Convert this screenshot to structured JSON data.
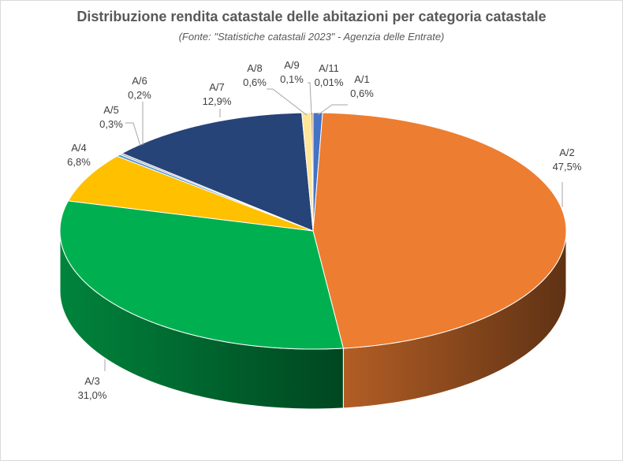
{
  "chart_data": {
    "type": "pie",
    "style": "3d",
    "title": "Distribuzione  rendita catastale delle abitazioni  per categoria catastale",
    "subtitle": "(Fonte: \"Statistiche catastali 2023\" - Agenzia delle Entrate)",
    "legend": "none",
    "slices": [
      {
        "label": "A/1",
        "value": 0.6,
        "value_label": "0,6%",
        "color": "#4472c4"
      },
      {
        "label": "A/2",
        "value": 47.5,
        "value_label": "47,5%",
        "color": "#ed7d31"
      },
      {
        "label": "A/3",
        "value": 31.0,
        "value_label": "31,0%",
        "color": "#00b050"
      },
      {
        "label": "A/4",
        "value": 6.8,
        "value_label": "6,8%",
        "color": "#ffc000"
      },
      {
        "label": "A/5",
        "value": 0.3,
        "value_label": "0,3%",
        "color": "#5b9bd5"
      },
      {
        "label": "A/6",
        "value": 0.2,
        "value_label": "0,2%",
        "color": "#a5a5a5"
      },
      {
        "label": "A/7",
        "value": 12.9,
        "value_label": "12,9%",
        "color": "#264478"
      },
      {
        "label": "A/8",
        "value": 0.6,
        "value_label": "0,6%",
        "color": "#ffe699"
      },
      {
        "label": "A/9",
        "value": 0.1,
        "value_label": "0,1%",
        "color": "#9e480e"
      },
      {
        "label": "A/11",
        "value": 0.01,
        "value_label": "0,01%",
        "color": "#636363"
      }
    ]
  }
}
